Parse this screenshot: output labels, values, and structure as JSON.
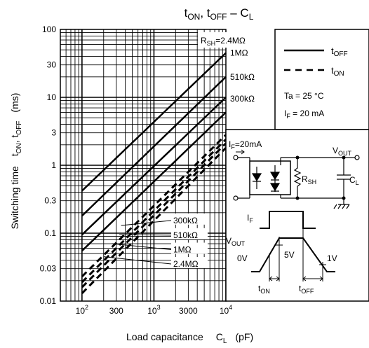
{
  "chart_data": {
    "type": "line",
    "title": {
      "base": "t",
      "s1": "ON",
      "mid": ", t",
      "s2": "OFF",
      "dash": " – C",
      "s3": "L"
    },
    "xlabel": {
      "main": "Load capacitance",
      "sym": "C",
      "sub": "L",
      "unit": "(pF)"
    },
    "ylabel": {
      "main": "Switching time",
      "p1": "t",
      "s1": "ON",
      "p2": ", t",
      "s2": "OFF",
      "unit": "(ms)"
    },
    "x_scale": "log",
    "y_scale": "log",
    "xlim": [
      50,
      10000
    ],
    "ylim": [
      0.01,
      100
    ],
    "grid": true,
    "x_ticks": [
      {
        "v": 100,
        "base": "10",
        "exp": "2"
      },
      {
        "v": 300,
        "base": "300",
        "exp": ""
      },
      {
        "v": 1000,
        "base": "10",
        "exp": "3"
      },
      {
        "v": 3000,
        "base": "3000",
        "exp": ""
      },
      {
        "v": 10000,
        "base": "10",
        "exp": "4"
      }
    ],
    "y_ticks": [
      {
        "v": 100,
        "label": "100"
      },
      {
        "v": 30,
        "label": "30"
      },
      {
        "v": 10,
        "label": "10"
      },
      {
        "v": 3,
        "label": "3"
      },
      {
        "v": 1,
        "label": "1"
      },
      {
        "v": 0.3,
        "label": "0.3"
      },
      {
        "v": 0.1,
        "label": "0.1"
      },
      {
        "v": 0.03,
        "label": "0.03"
      },
      {
        "v": 0.01,
        "label": "0.01"
      }
    ],
    "series": [
      {
        "name": "t_OFF R_SH=2.4MΩ",
        "style": "solid",
        "points": [
          [
            100,
            0.42
          ],
          [
            10000,
            45
          ]
        ]
      },
      {
        "name": "t_OFF R_SH=1MΩ",
        "style": "solid",
        "points": [
          [
            100,
            0.18
          ],
          [
            10000,
            20
          ]
        ]
      },
      {
        "name": "t_OFF R_SH=510kΩ",
        "style": "solid",
        "points": [
          [
            100,
            0.095
          ],
          [
            10000,
            10
          ]
        ]
      },
      {
        "name": "t_OFF R_SH=300kΩ",
        "style": "solid",
        "points": [
          [
            100,
            0.055
          ],
          [
            10000,
            6
          ]
        ]
      },
      {
        "name": "t_ON R_SH=2.4MΩ",
        "style": "dashed",
        "points": [
          [
            100,
            0.013
          ],
          [
            10000,
            1.8
          ]
        ]
      },
      {
        "name": "t_ON R_SH=1MΩ",
        "style": "dashed",
        "points": [
          [
            100,
            0.016
          ],
          [
            10000,
            2.1
          ]
        ]
      },
      {
        "name": "t_ON R_SH=510kΩ",
        "style": "dashed",
        "points": [
          [
            100,
            0.019
          ],
          [
            10000,
            2.4
          ]
        ]
      },
      {
        "name": "t_ON R_SH=300kΩ",
        "style": "dashed",
        "points": [
          [
            100,
            0.023
          ],
          [
            10000,
            2.8
          ]
        ]
      }
    ],
    "curve_labels_top": [
      {
        "y": 100,
        "text": "R",
        "sub": "SH",
        "rest": "=2.4MΩ"
      },
      {
        "y": 45,
        "text": "1MΩ",
        "sub": "",
        "rest": ""
      },
      {
        "y": 20,
        "text": "510kΩ",
        "sub": "",
        "rest": ""
      },
      {
        "y": 9.5,
        "text": "300kΩ",
        "sub": "",
        "rest": ""
      }
    ],
    "curve_labels_bottom": [
      {
        "text": "300kΩ",
        "target_x": 350,
        "target_y": 0.13,
        "label_y": 0.14
      },
      {
        "text": "510kΩ",
        "target_x": 330,
        "target_y": 0.095,
        "label_y": 0.085
      },
      {
        "text": "1MΩ",
        "target_x": 260,
        "target_y": 0.07,
        "label_y": 0.052
      },
      {
        "text": "2.4MΩ",
        "target_x": 200,
        "target_y": 0.045,
        "label_y": 0.032
      }
    ],
    "legend": {
      "position": "top-right",
      "items": [
        {
          "style": "solid",
          "label": "t",
          "sub": "OFF"
        },
        {
          "style": "dashed",
          "label": "t",
          "sub": "ON"
        }
      ],
      "conditions": [
        {
          "main": "Ta = 25 °C",
          "sub": "",
          "rest": ""
        },
        {
          "main": "I",
          "sub": "F",
          "rest": " = 20 mA"
        }
      ]
    },
    "circuit": {
      "if_label": {
        "main": "I",
        "sub": "F",
        "rest": "=20mA"
      },
      "vout_label": {
        "main": "V",
        "sub": "OUT"
      },
      "rsh_label": {
        "main": "R",
        "sub": "SH"
      },
      "cl_label": {
        "main": "C",
        "sub": "L"
      }
    },
    "waveform": {
      "if_label": {
        "main": "I",
        "sub": "F"
      },
      "vout_label": {
        "main": "V",
        "sub": "OUT"
      },
      "zero_v": "0V",
      "five_v": "5V",
      "one_v": "1V",
      "ton_label": {
        "main": "t",
        "sub": "ON"
      },
      "toff_label": {
        "main": "t",
        "sub": "OFF"
      }
    }
  }
}
